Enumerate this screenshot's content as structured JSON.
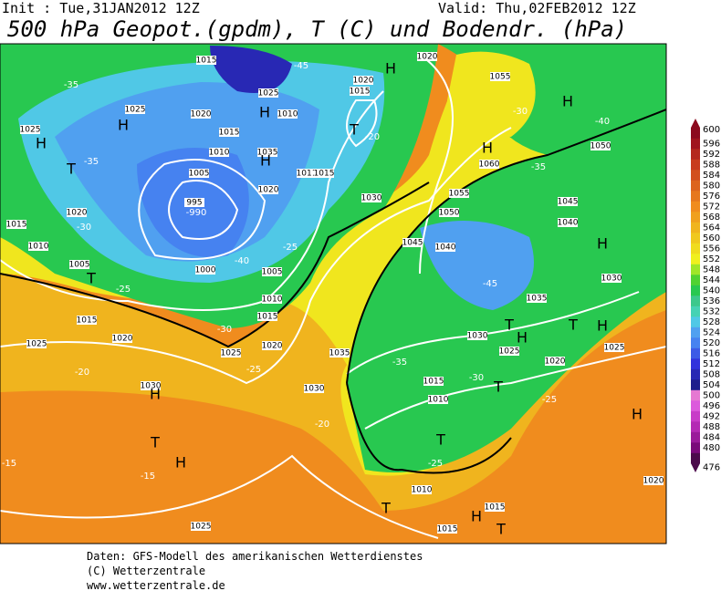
{
  "header": {
    "init": "Init : Tue,31JAN2012 12Z",
    "valid": "Valid: Thu,02FEB2012 12Z",
    "title": "500 hPa Geopot.(gpdm), T (C) und Bodendr. (hPa)"
  },
  "colorbar": {
    "ticks": [
      "476",
      "480",
      "484",
      "488",
      "492",
      "496",
      "500",
      "504",
      "508",
      "512",
      "516",
      "520",
      "524",
      "528",
      "532",
      "536",
      "540",
      "544",
      "548",
      "552",
      "556",
      "560",
      "564",
      "568",
      "572",
      "576",
      "580",
      "584",
      "588",
      "592",
      "596",
      "600"
    ],
    "colors": [
      "#4b0a4b",
      "#7a0a7a",
      "#9a1a9a",
      "#b42ab4",
      "#c83cc8",
      "#dc5adc",
      "#e678d2",
      "#1e1e8c",
      "#2828b4",
      "#3232dc",
      "#3c5ae6",
      "#4682f0",
      "#50a0f0",
      "#50c8e6",
      "#46d2b4",
      "#3cc88c",
      "#28c850",
      "#50d232",
      "#a0e628",
      "#f0f01e",
      "#f0dc1e",
      "#f0c81e",
      "#f0b41e",
      "#f0a01e",
      "#f08c1e",
      "#e6781e",
      "#dc641e",
      "#d2501e",
      "#c83c1e",
      "#b4281e",
      "#a0141e",
      "#8c0a1e"
    ]
  },
  "map": {
    "labels": [
      "1015",
      "-45",
      "1020",
      "H",
      "1020",
      "1055",
      "-35",
      "1025",
      "1025",
      "H",
      "1020",
      "H",
      "1010",
      "1015",
      "T",
      "-30",
      "H",
      "-40",
      "1025",
      "H",
      "1015",
      "1035",
      "H",
      "-20",
      "H",
      "1060",
      "1050",
      "-35",
      "T",
      "1010",
      "1005",
      "1011",
      "1015",
      "-35",
      "1020",
      "995",
      "-990",
      "1020",
      "1030",
      "1055",
      "1045",
      "1015",
      "-30",
      "1040",
      "1050",
      "H",
      "1010",
      "-25",
      "1045",
      "1040",
      "1005",
      "T",
      "1000",
      "-40",
      "1005",
      "-45",
      "1030",
      "-25",
      "1010",
      "1035",
      "1015",
      "1015",
      "T",
      "T",
      "H",
      "1020",
      "-30",
      "1030",
      "H",
      "1025",
      "1025",
      "1020",
      "1035",
      "1025",
      "1025",
      "-35",
      "1020",
      "-20",
      "-25",
      "1015",
      "-30",
      "T",
      "1030",
      "H",
      "1030",
      "1010",
      "-25",
      "H",
      "-20",
      "T",
      "T",
      "H",
      "-15",
      "-15",
      "-25",
      "1020",
      "1010",
      "T",
      "1015",
      "H",
      "T",
      "1025",
      "1015"
    ]
  },
  "footer": {
    "lines": [
      "Daten: GFS-Modell des amerikanischen Wetterdienstes",
      "(C) Wetterzentrale",
      "www.wetterzentrale.de"
    ]
  }
}
